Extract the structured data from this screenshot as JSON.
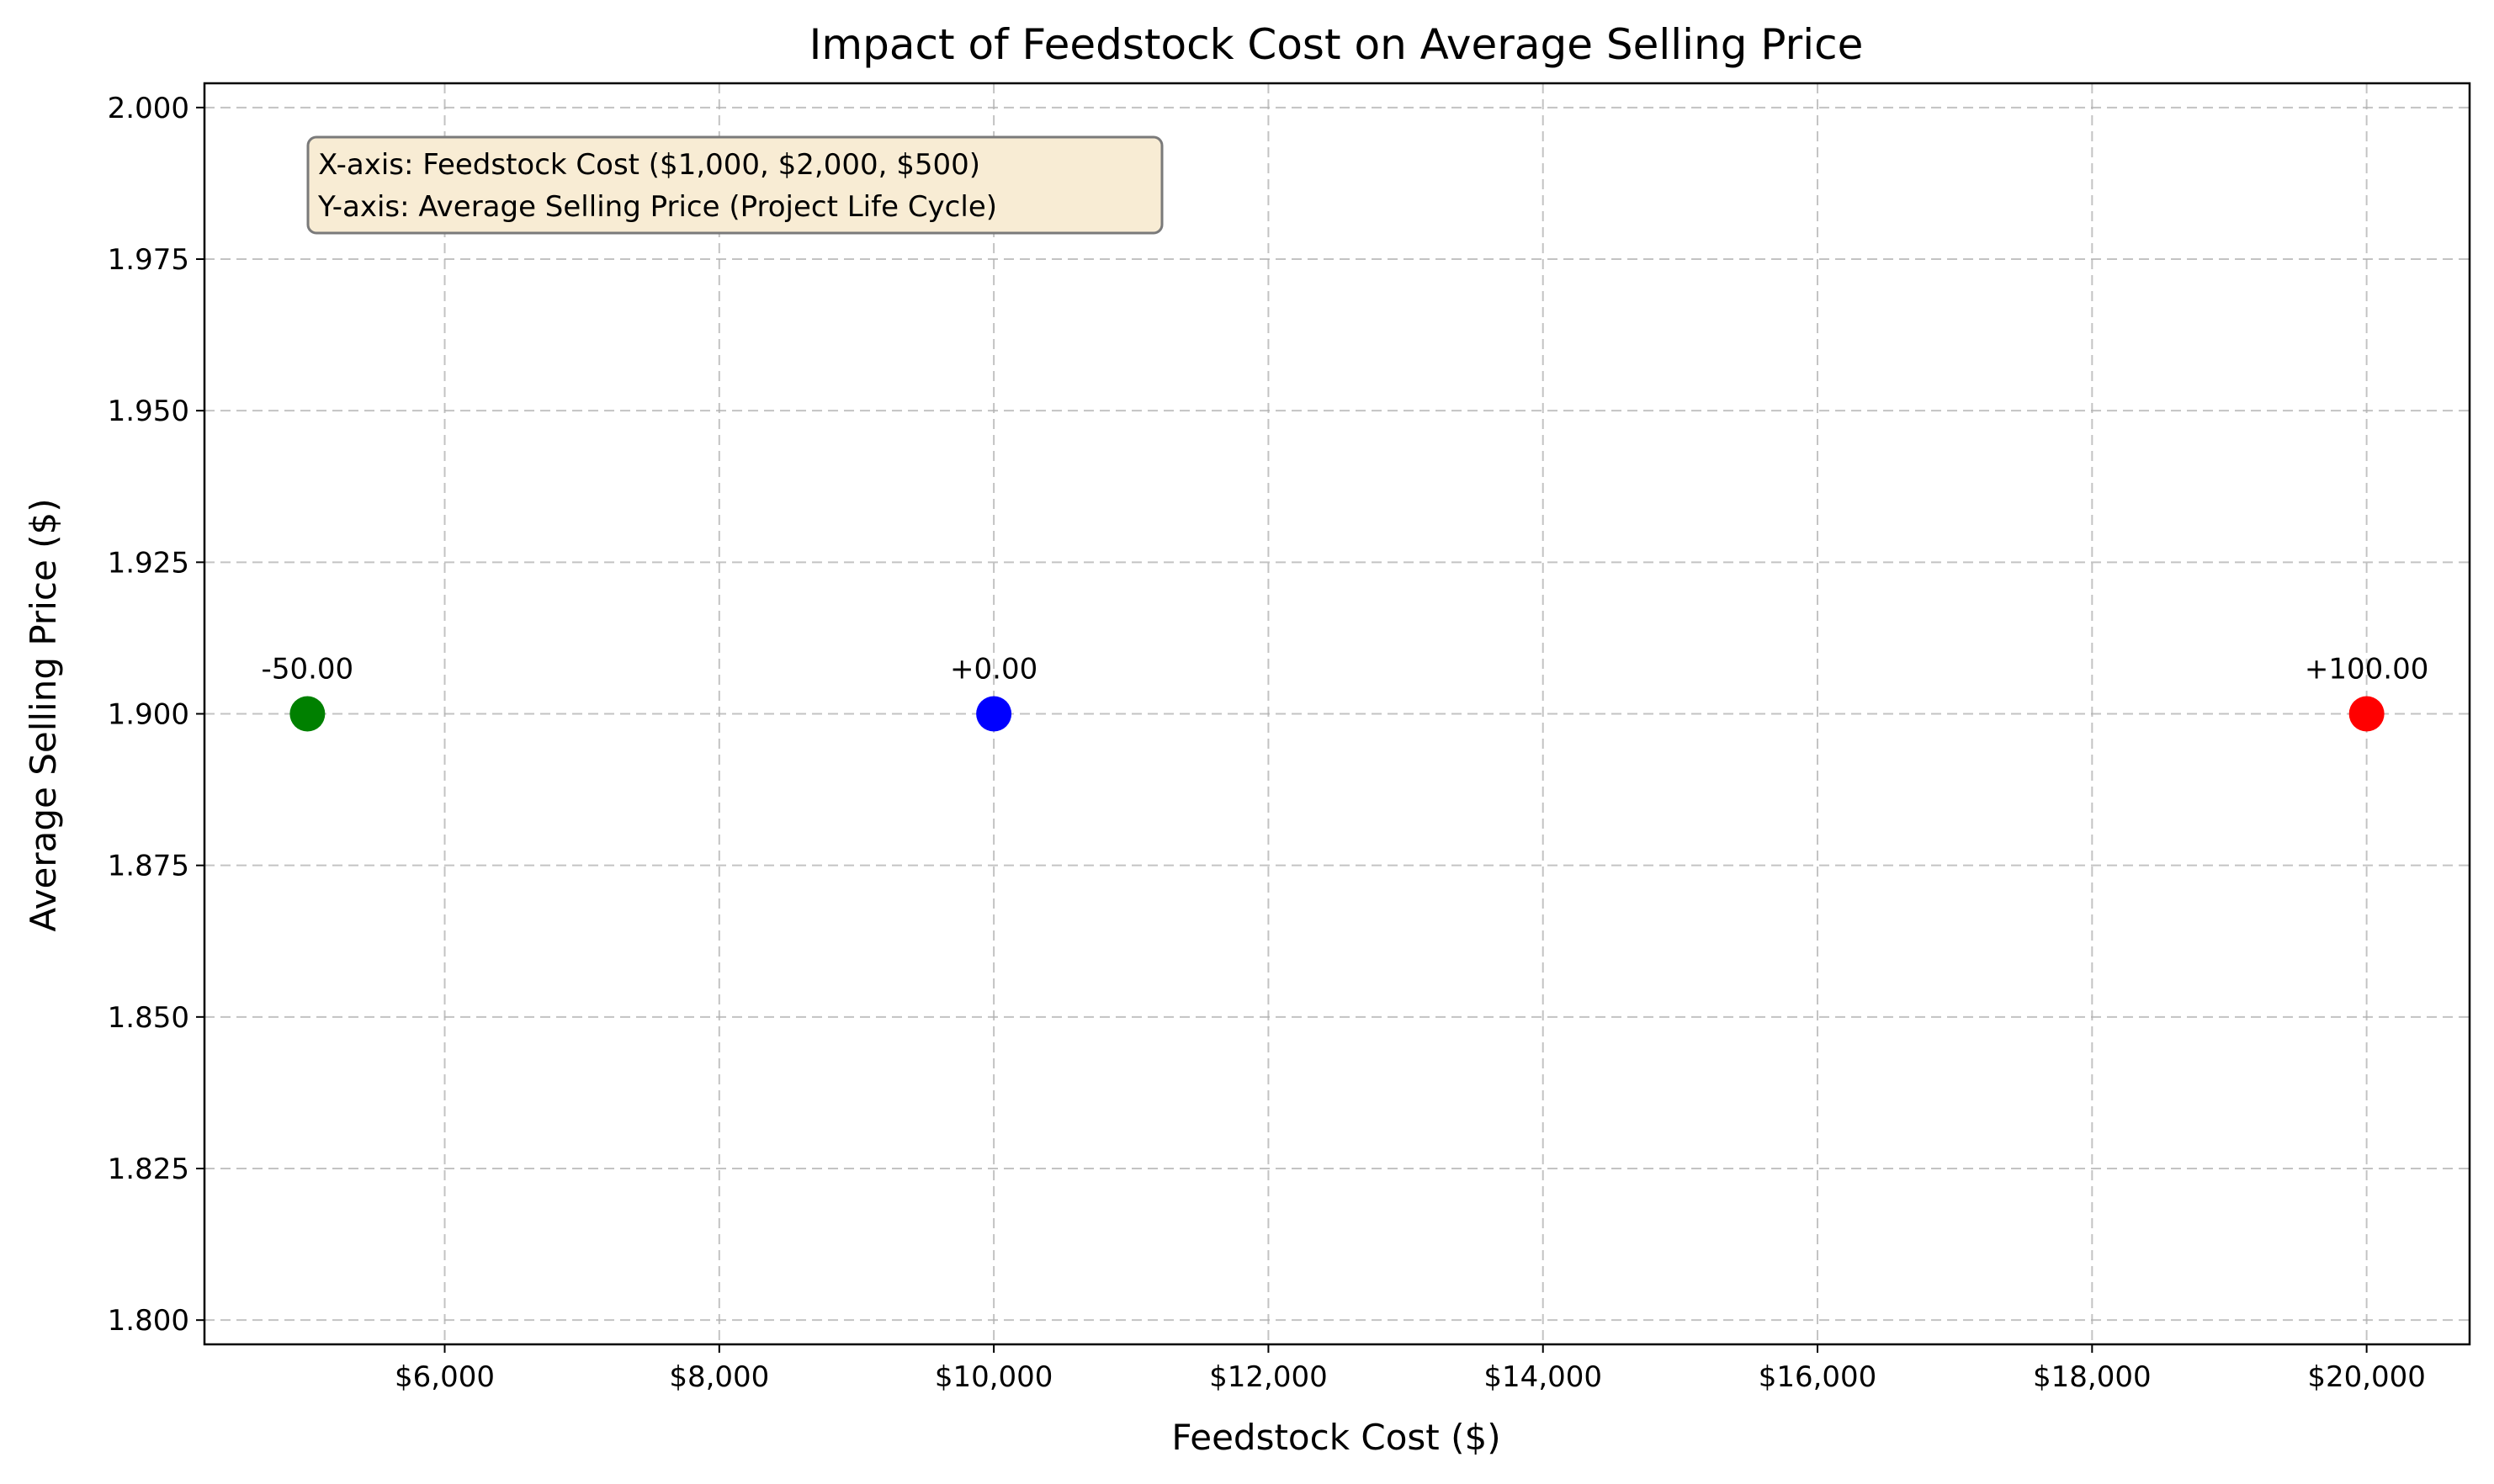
{
  "chart_data": {
    "type": "scatter",
    "title": "Impact of Feedstock Cost on Average Selling Price",
    "xlabel": "Feedstock Cost ($)",
    "ylabel": "Average Selling Price ($)",
    "xlim": [
      4250,
      20750
    ],
    "ylim": [
      1.796,
      2.004
    ],
    "x_ticks": [
      6000,
      8000,
      10000,
      12000,
      14000,
      16000,
      18000,
      20000
    ],
    "x_tick_labels": [
      "$6,000",
      "$8,000",
      "$10,000",
      "$12,000",
      "$14,000",
      "$16,000",
      "$18,000",
      "$20,000"
    ],
    "y_ticks": [
      1.8,
      1.825,
      1.85,
      1.875,
      1.9,
      1.925,
      1.95,
      1.975,
      2.0
    ],
    "y_tick_labels": [
      "1.800",
      "1.825",
      "1.850",
      "1.875",
      "1.900",
      "1.925",
      "1.950",
      "1.975",
      "2.000"
    ],
    "grid": true,
    "points": [
      {
        "x": 5000,
        "y": 1.9,
        "label": "-50.00",
        "color": "#008000"
      },
      {
        "x": 10000,
        "y": 1.9,
        "label": "+0.00",
        "color": "#0000ff"
      },
      {
        "x": 20000,
        "y": 1.9,
        "label": "+100.00",
        "color": "#ff0000"
      }
    ],
    "annotation": {
      "lines": [
        "X-axis: Feedstock Cost ($1,000, $2,000, $500)",
        "Y-axis: Average Selling Price (Project Life Cycle)"
      ],
      "background": "#f8ecd4"
    }
  }
}
